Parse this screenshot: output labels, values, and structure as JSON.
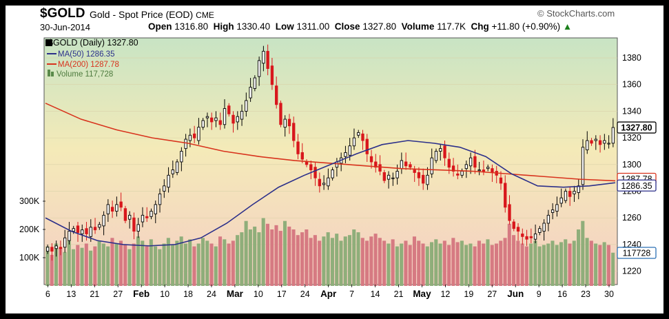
{
  "header": {
    "symbol": "$GOLD",
    "name": "Gold - Spot Price (EOD)",
    "exchange": "CME",
    "brand": "© StockCharts.com",
    "date": "30-Jun-2014",
    "open_label": "Open",
    "open": "1316.80",
    "high_label": "High",
    "high": "1330.40",
    "low_label": "Low",
    "low": "1311.00",
    "close_label": "Close",
    "close": "1327.80",
    "volume_label": "Volume",
    "volume": "117.7K",
    "chg_label": "Chg",
    "chg": "+11.80 (+0.90%)"
  },
  "legend": {
    "price": "$GOLD (Daily) 1327.80",
    "ma50": "MA(50) 1286.35",
    "ma200": "MA(200) 1287.78",
    "volume": "Volume 117,728"
  },
  "colors": {
    "up": "#000000",
    "down": "#d8171c",
    "ma50": "#2b2f8a",
    "ma200": "#d8321c",
    "vol_up": "#8fae7a",
    "vol_down": "#d67a82",
    "bg_top": "#c8e4c4",
    "bg_mid": "#f4eab8",
    "bg_bottom": "#f5cfc4"
  },
  "chart_data": {
    "type": "candlestick",
    "title": "$GOLD Gold - Spot Price (EOD) CME",
    "ylim": [
      1210,
      1395
    ],
    "price_ticks": [
      "1380",
      "1360",
      "1340",
      "1320",
      "1300",
      "1280",
      "1260",
      "1240",
      "1220"
    ],
    "volume_ticks": [
      "300K",
      "200K",
      "100K"
    ],
    "x_tick_labels": [
      "6",
      "13",
      "21",
      "27",
      "Feb",
      "10",
      "18",
      "24",
      "Mar",
      "10",
      "17",
      "24",
      "Apr",
      "7",
      "14",
      "21",
      "May",
      "12",
      "19",
      "27",
      "Jun",
      "9",
      "16",
      "23",
      "30"
    ],
    "price_path": [
      1238,
      1235,
      1239,
      1237,
      1245,
      1250,
      1252,
      1249,
      1251,
      1248,
      1253,
      1251,
      1255,
      1262,
      1270,
      1265,
      1270,
      1268,
      1258,
      1262,
      1250,
      1255,
      1262,
      1260,
      1265,
      1270,
      1278,
      1284,
      1292,
      1296,
      1302,
      1310,
      1319,
      1322,
      1320,
      1328,
      1333,
      1336,
      1332,
      1335,
      1330,
      1342,
      1338,
      1331,
      1336,
      1340,
      1348,
      1358,
      1365,
      1378,
      1385,
      1372,
      1360,
      1345,
      1330,
      1334,
      1329,
      1318,
      1308,
      1304,
      1300,
      1296,
      1290,
      1284,
      1286,
      1290,
      1296,
      1302,
      1305,
      1309,
      1314,
      1320,
      1324,
      1318,
      1308,
      1302,
      1298,
      1295,
      1288,
      1292,
      1290,
      1295,
      1303,
      1299,
      1298,
      1294,
      1290,
      1286,
      1292,
      1305,
      1310,
      1312,
      1305,
      1298,
      1295,
      1292,
      1295,
      1300,
      1305,
      1298,
      1296,
      1295,
      1298,
      1294,
      1292,
      1286,
      1268,
      1258,
      1252,
      1250,
      1246,
      1244,
      1245,
      1248,
      1252,
      1256,
      1262,
      1266,
      1270,
      1275,
      1280,
      1276,
      1280,
      1284,
      1313,
      1318,
      1316,
      1319,
      1315,
      1318,
      1316,
      1327.8
    ],
    "ma50": {
      "name": "MA(50)",
      "values": [
        1260,
        1250,
        1243,
        1240,
        1239,
        1240,
        1245,
        1256,
        1270,
        1283,
        1292,
        1300,
        1308,
        1315,
        1318,
        1316,
        1313,
        1306,
        1293,
        1284,
        1283,
        1284,
        1286.35
      ]
    },
    "ma200": {
      "name": "MA(200)",
      "values": [
        1346,
        1334,
        1326,
        1320,
        1316,
        1310,
        1306,
        1303,
        1301,
        1299,
        1297,
        1296,
        1295,
        1293,
        1291,
        1289,
        1287.78
      ]
    },
    "volume": {
      "name": "Volume",
      "values": [
        140,
        110,
        150,
        135,
        120,
        160,
        130,
        145,
        135,
        150,
        125,
        140,
        160,
        150,
        140,
        170,
        150,
        160,
        145,
        130,
        150,
        175,
        160,
        140,
        165,
        140,
        130,
        150,
        170,
        145,
        160,
        175,
        150,
        165,
        140,
        150,
        170,
        160,
        150,
        140,
        175,
        165,
        150,
        160,
        180,
        190,
        230,
        200,
        210,
        190,
        240,
        220,
        200,
        215,
        195,
        230,
        210,
        200,
        180,
        190,
        200,
        170,
        180,
        160,
        175,
        190,
        170,
        185,
        160,
        175,
        180,
        200,
        190,
        170,
        160,
        175,
        185,
        170,
        160,
        150,
        165,
        140,
        150,
        160,
        145,
        175,
        160,
        150,
        140,
        155,
        165,
        150,
        160,
        145,
        170,
        155,
        160,
        145,
        150,
        140,
        160,
        150,
        165,
        145,
        150,
        160,
        170,
        220,
        180,
        160,
        150,
        140,
        150,
        160,
        140,
        145,
        150,
        160,
        145,
        155,
        165,
        150,
        160,
        200,
        230,
        170,
        160,
        150,
        145,
        155,
        145,
        117.7
      ]
    },
    "last_labels": {
      "close": "1327.80",
      "ma200": "1287.78",
      "ma50": "1286.35",
      "volume": "117728"
    }
  }
}
